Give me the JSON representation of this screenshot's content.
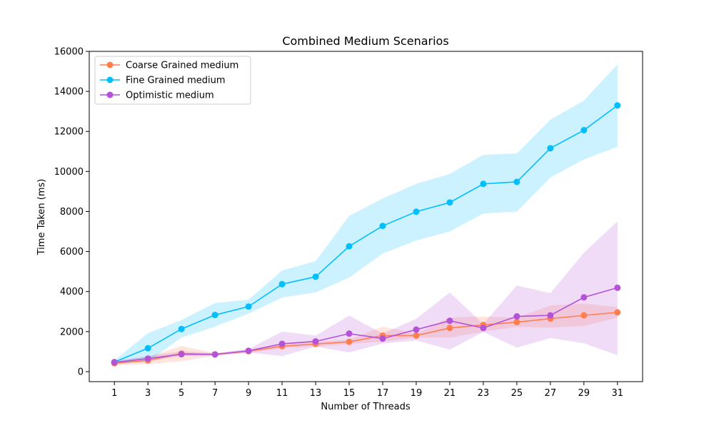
{
  "chart_data": {
    "type": "line",
    "title": "Combined Medium Scenarios",
    "xlabel": "Number of Threads",
    "ylabel": "Time Taken (ms)",
    "x": [
      1,
      3,
      5,
      7,
      9,
      11,
      13,
      15,
      17,
      19,
      21,
      23,
      25,
      27,
      29,
      31
    ],
    "xlim": [
      -0.5,
      32.5
    ],
    "ylim": [
      -500,
      16000
    ],
    "yticks": [
      0,
      2000,
      4000,
      6000,
      8000,
      10000,
      12000,
      14000,
      16000
    ],
    "legend_position": "upper-left",
    "grid": false,
    "series": [
      {
        "name": "Coarse Grained medium",
        "color": "#ff7f50",
        "values": [
          420,
          560,
          900,
          860,
          1020,
          1270,
          1380,
          1490,
          1800,
          1800,
          2180,
          2330,
          2470,
          2650,
          2810,
          2960
        ],
        "lower": [
          320,
          380,
          520,
          800,
          940,
          1180,
          1260,
          1380,
          1500,
          1700,
          1700,
          2000,
          2230,
          2200,
          2280,
          2700
        ],
        "upper": [
          520,
          740,
          1280,
          920,
          1100,
          1360,
          1500,
          1600,
          2250,
          1900,
          2700,
          2750,
          2700,
          3300,
          3400,
          3220
        ]
      },
      {
        "name": "Fine Grained medium",
        "color": "#00bfff",
        "values": [
          480,
          1170,
          2130,
          2830,
          3250,
          4370,
          4740,
          6260,
          7280,
          7990,
          8450,
          9380,
          9480,
          11160,
          12060,
          13300
        ],
        "lower": [
          400,
          500,
          1700,
          2250,
          2900,
          3700,
          3960,
          4700,
          5900,
          6550,
          7000,
          7900,
          8000,
          9700,
          10600,
          11230
        ],
        "upper": [
          560,
          1920,
          2580,
          3430,
          3600,
          5050,
          5520,
          7780,
          8650,
          9380,
          9880,
          10830,
          10900,
          12590,
          13540,
          15350
        ]
      },
      {
        "name": "Optimistic medium",
        "color": "#b452d8",
        "values": [
          460,
          650,
          870,
          860,
          1040,
          1390,
          1510,
          1900,
          1650,
          2100,
          2540,
          2180,
          2760,
          2810,
          3710,
          4190
        ],
        "lower": [
          380,
          520,
          780,
          800,
          950,
          780,
          1250,
          960,
          1400,
          1560,
          1100,
          1980,
          1200,
          1680,
          1420,
          820
        ],
        "upper": [
          540,
          780,
          1020,
          920,
          1130,
          2000,
          1800,
          2800,
          1900,
          2640,
          3950,
          2380,
          4300,
          3920,
          5940,
          7500
        ]
      }
    ]
  }
}
